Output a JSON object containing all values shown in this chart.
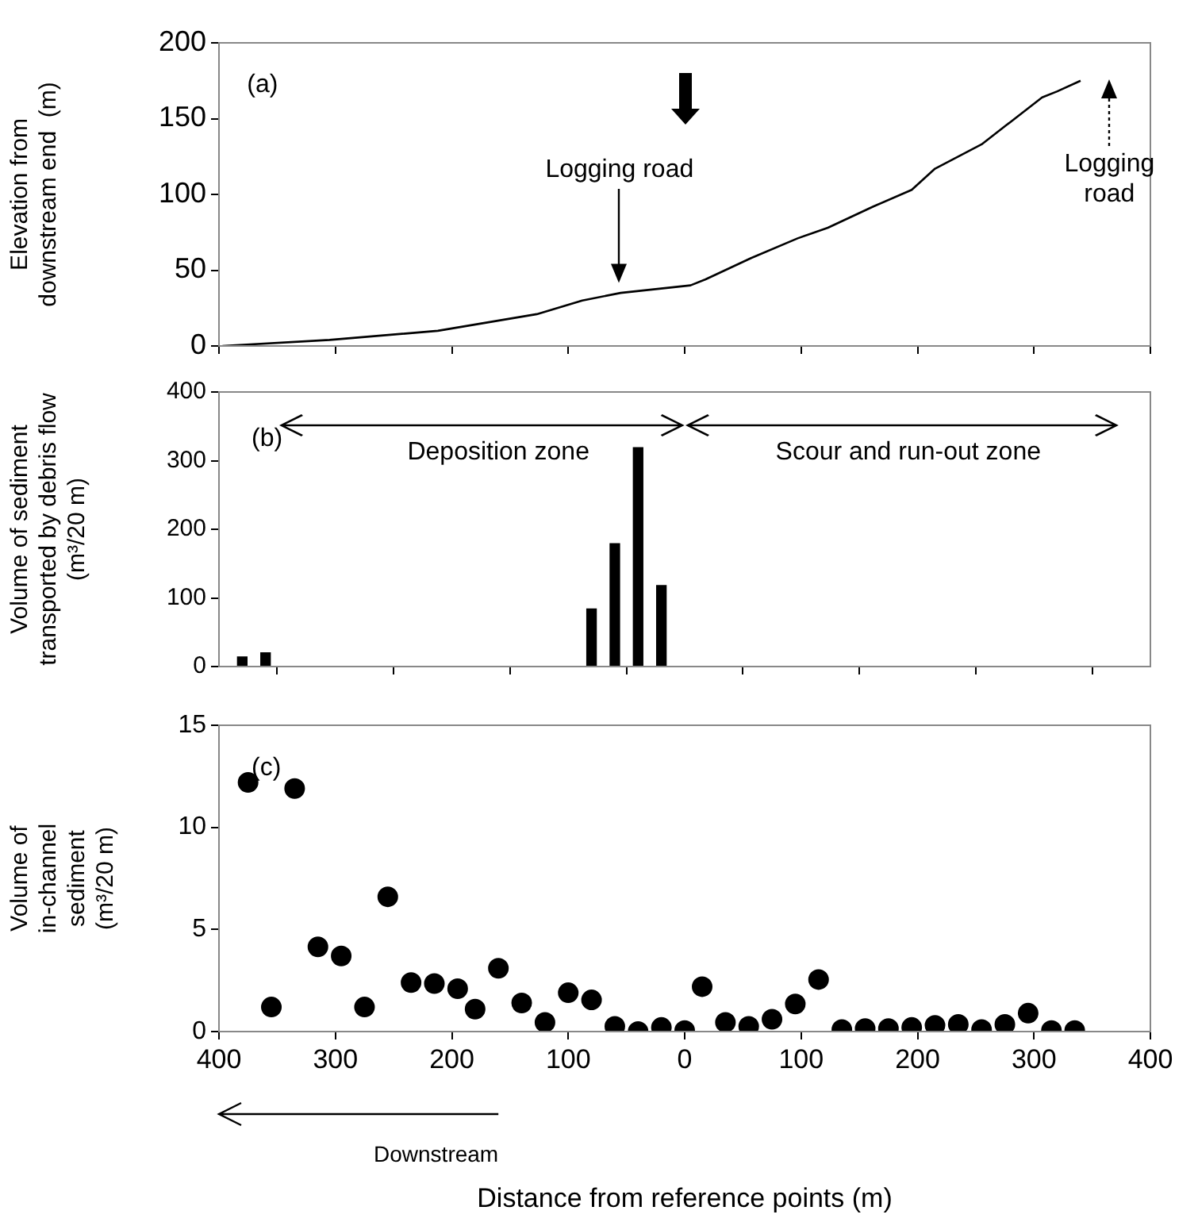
{
  "chart_data": [
    {
      "type": "line",
      "color": "#000000",
      "marker": "none",
      "line_style": "solid",
      "grid": false,
      "legend": false,
      "tick_labels": "y",
      "ylabel": "Elevation from\ndownstream end  (m)",
      "x": [
        -397,
        -305,
        -212,
        -127,
        -88,
        -55,
        5,
        18,
        57,
        97,
        123,
        162,
        195,
        215,
        255,
        307,
        320,
        340
      ],
      "values": [
        0,
        4,
        10,
        21,
        30,
        35,
        40,
        44,
        58,
        71,
        78,
        92,
        103,
        117,
        133,
        164,
        168,
        175
      ],
      "xlim": [
        -400,
        400
      ],
      "xticks": [
        {
          "value": -400,
          "label": null
        },
        {
          "value": -300,
          "label": null
        },
        {
          "value": -200,
          "label": null
        },
        {
          "value": -100,
          "label": null
        },
        {
          "value": 0,
          "label": null
        },
        {
          "value": 100,
          "label": null
        },
        {
          "value": 200,
          "label": null
        },
        {
          "value": 300,
          "label": null
        },
        {
          "value": 400,
          "label": null
        }
      ],
      "ylim": [
        0,
        200
      ],
      "yticks": [
        0,
        50,
        100,
        150,
        200
      ],
      "annotations": [
        "(a)",
        "Logging road",
        "Logging road"
      ]
    },
    {
      "type": "bar",
      "color": "#000000",
      "grid": false,
      "legend": false,
      "tick_labels": "y",
      "ylabel": "Volume of sediment\ntransported by debris flow\n(m³/20 m)",
      "x": [
        -380,
        -360,
        -80,
        -60,
        -40,
        -20
      ],
      "values": [
        14,
        20,
        84,
        179,
        319,
        118
      ],
      "xlim": [
        -400,
        400
      ],
      "xticks": [
        {
          "value": -400,
          "label": null
        },
        {
          "value": -300,
          "label": null
        },
        {
          "value": -200,
          "label": null
        },
        {
          "value": -100,
          "label": null
        },
        {
          "value": 0,
          "label": null
        },
        {
          "value": 100,
          "label": null
        },
        {
          "value": 200,
          "label": null
        },
        {
          "value": 300,
          "label": null
        },
        {
          "value": 400,
          "label": null
        }
      ],
      "ylim": [
        0,
        400
      ],
      "yticks": [
        0,
        100,
        200,
        300,
        400
      ],
      "annotations": [
        "(b)",
        "Deposition zone",
        "Scour and run-out zone"
      ]
    },
    {
      "type": "scatter",
      "color": "#000000",
      "marker": "circle",
      "grid": false,
      "legend": false,
      "ylabel": "Volume of\nin-channel\nsediment\n(m³/20 m)",
      "xlabel": "Distance from reference points (m)",
      "x": [
        -375,
        -355,
        -335,
        -315,
        -295,
        -275,
        -255,
        -235,
        -215,
        -195,
        -180,
        -160,
        -140,
        -120,
        -100,
        -80,
        -60,
        -40,
        -20,
        0,
        15,
        35,
        55,
        75,
        95,
        115,
        135,
        155,
        175,
        195,
        215,
        235,
        255,
        275,
        295,
        315,
        335
      ],
      "values": [
        12.2,
        1.2,
        11.9,
        4.15,
        3.7,
        1.2,
        6.6,
        2.4,
        2.35,
        2.1,
        1.1,
        3.1,
        1.4,
        0.45,
        1.9,
        1.55,
        0.25,
        0,
        0.2,
        0.05,
        2.2,
        0.45,
        0.25,
        0.6,
        1.35,
        2.55,
        0.1,
        0.15,
        0.15,
        0.2,
        0.3,
        0.35,
        0.1,
        0.35,
        0.9,
        0.05,
        0.05
      ],
      "xlim": [
        -400,
        400
      ],
      "xticks": [
        {
          "value": -400,
          "label": "400"
        },
        {
          "value": -300,
          "label": "300"
        },
        {
          "value": -200,
          "label": "200"
        },
        {
          "value": -100,
          "label": "100"
        },
        0,
        100,
        200,
        300,
        400
      ],
      "ylim": [
        0,
        15
      ],
      "yticks": [
        0,
        5,
        10,
        15
      ],
      "annotations": [
        "(c)",
        "Downstream"
      ]
    }
  ]
}
